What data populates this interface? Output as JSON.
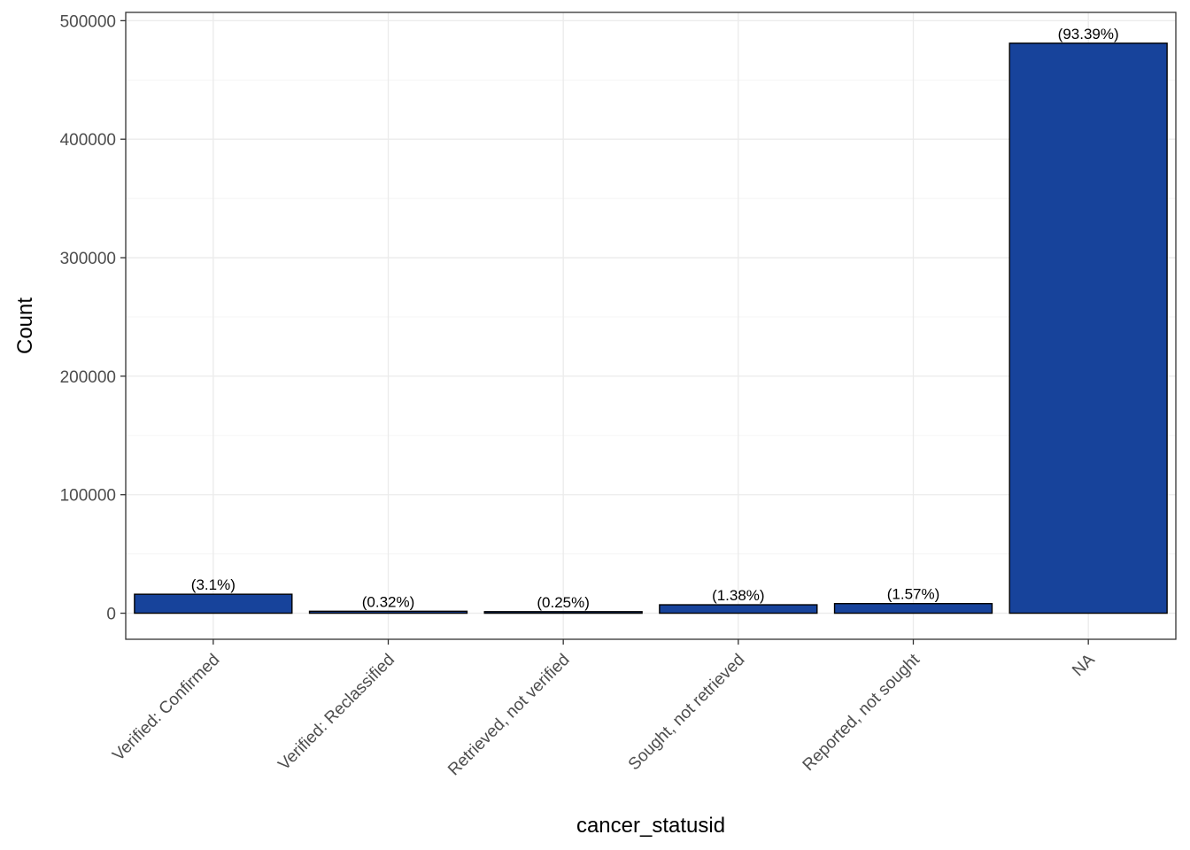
{
  "chart_data": {
    "type": "bar",
    "title": "",
    "xlabel": "cancer_statusid",
    "ylabel": "Count",
    "categories": [
      "Verified: Confirmed",
      "Verified: Reclassified",
      "Retrieved, not verified",
      "Sought, not retrieved",
      "Reported, not sought",
      "NA"
    ],
    "values": [
      16000,
      1650,
      1300,
      7100,
      8100,
      481000
    ],
    "labels": [
      "(3.1%)",
      "(0.32%)",
      "(0.25%)",
      "(1.38%)",
      "(1.57%)",
      "(93.39%)"
    ],
    "yticks": [
      0,
      100000,
      200000,
      300000,
      400000,
      500000
    ],
    "ylim": [
      -22000,
      507000
    ],
    "grid": true,
    "bar_color": "#17439B",
    "bar_outline": "#000000"
  }
}
